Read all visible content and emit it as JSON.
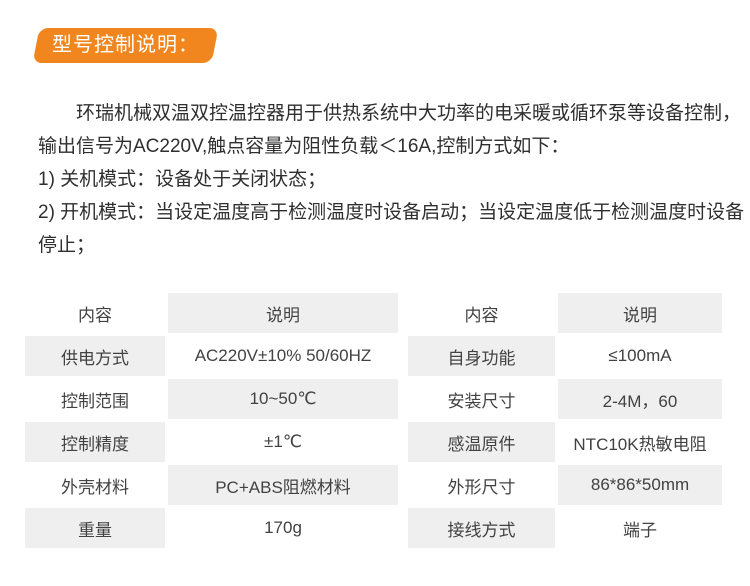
{
  "badge": {
    "label": "型号控制说明："
  },
  "description": {
    "lines": [
      {
        "text": "环瑞机械双温双控温控器用于供热系统中大功率的电采暖或循环泵等设备控制，"
      },
      {
        "text": "输出信号为AC220V,触点容量为阻性负载＜16A,控制方式如下："
      },
      {
        "text": "1) 关机模式：设备处于关闭状态；"
      },
      {
        "text": "2) 开机模式：当设定温度高于检测温度时设备启动；当设定温度低于检测温度时设备"
      },
      {
        "text": "停止；"
      }
    ]
  },
  "tables": {
    "left": {
      "headers": [
        "内容",
        "说明"
      ],
      "rows": [
        [
          "供电方式",
          "AC220V±10% 50/60HZ"
        ],
        [
          "控制范围",
          "10~50℃"
        ],
        [
          "控制精度",
          "±1℃"
        ],
        [
          "外壳材料",
          "PC+ABS阻燃材料"
        ],
        [
          "重量",
          "170g"
        ]
      ]
    },
    "right": {
      "headers": [
        "内容",
        "说明"
      ],
      "rows": [
        [
          "自身功能",
          "≤100mA"
        ],
        [
          "安装尺寸",
          "2-4M，60"
        ],
        [
          "感温原件",
          "NTC10K热敏电阻"
        ],
        [
          "外形尺寸",
          "86*86*50mm"
        ],
        [
          "接线方式",
          "端子"
        ]
      ]
    }
  },
  "colors": {
    "accent_orange": "#f1861f",
    "cell_gray": "#efefef",
    "text_dark": "#2f2f2f"
  }
}
